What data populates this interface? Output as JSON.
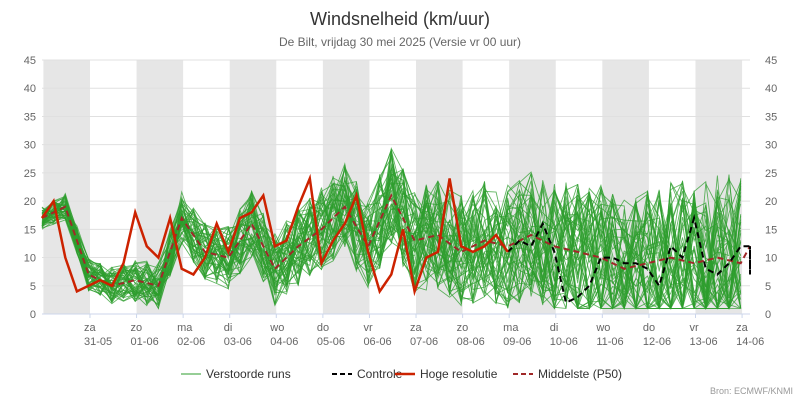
{
  "chart_data": {
    "type": "line",
    "title": "Windsnelheid (km/uur)",
    "subtitle": "De Bilt, vrijdag 30 mei 2025 (Versie vr 00 uur)",
    "source": "Bron: ECMWF/KNMI",
    "ylim": [
      0,
      45
    ],
    "y_ticks": [
      0,
      5,
      10,
      15,
      20,
      25,
      30,
      35,
      40,
      45
    ],
    "x_range_days": [
      0,
      15.2
    ],
    "day_labels": [
      {
        "day": "za",
        "date": "31-05"
      },
      {
        "day": "zo",
        "date": "01-06"
      },
      {
        "day": "ma",
        "date": "02-06"
      },
      {
        "day": "di",
        "date": "03-06"
      },
      {
        "day": "wo",
        "date": "04-06"
      },
      {
        "day": "do",
        "date": "05-06"
      },
      {
        "day": "vr",
        "date": "06-06"
      },
      {
        "day": "za",
        "date": "07-06"
      },
      {
        "day": "zo",
        "date": "08-06"
      },
      {
        "day": "ma",
        "date": "09-06"
      },
      {
        "day": "di",
        "date": "10-06"
      },
      {
        "day": "wo",
        "date": "11-06"
      },
      {
        "day": "do",
        "date": "12-06"
      },
      {
        "day": "vr",
        "date": "13-06"
      },
      {
        "day": "za",
        "date": "14-06"
      }
    ],
    "grid": true,
    "legend_position": "bottom",
    "colors": {
      "ensemble": "#2e9e2e",
      "control": "#000000",
      "hires": "#cc2200",
      "median": "#a02828",
      "shade": "#e6e6e6"
    },
    "series": [
      {
        "name": "Hoge resolutie",
        "x": [
          0,
          0.25,
          0.5,
          0.75,
          1.0,
          1.25,
          1.5,
          1.75,
          2.0,
          2.25,
          2.5,
          2.75,
          3.0,
          3.25,
          3.5,
          3.75,
          4.0,
          4.25,
          4.5,
          4.75,
          5.0,
          5.25,
          5.5,
          5.75,
          6.0,
          6.25,
          6.5,
          6.75,
          7.0,
          7.25,
          7.5,
          7.75,
          8.0,
          8.25,
          8.5,
          8.75,
          9.0,
          9.25,
          9.5,
          9.75,
          10.0
        ],
        "values": [
          17,
          20,
          10,
          4,
          5,
          6,
          5,
          9,
          18,
          12,
          10,
          17,
          8,
          7,
          10,
          16,
          11,
          17,
          18,
          21,
          12,
          13,
          19,
          24,
          9,
          13,
          16,
          21,
          11,
          4,
          7,
          15,
          4,
          10,
          11,
          24,
          12,
          11,
          12,
          14,
          11
        ]
      },
      {
        "name": "Controle",
        "x": [
          10.0,
          10.25,
          10.5,
          10.75,
          11.0,
          11.25,
          11.5,
          11.75,
          12.0,
          12.25,
          12.5,
          12.75,
          13.0,
          13.25,
          13.5,
          13.75,
          14.0,
          14.25,
          14.5,
          14.75,
          15.0,
          15.25,
          15.5,
          15.75,
          16.0
        ],
        "values": [
          11,
          13,
          12,
          16,
          11,
          2,
          3,
          5,
          10,
          10,
          9,
          9,
          8,
          5,
          12,
          10,
          17,
          8,
          7,
          9,
          12,
          12,
          7,
          12,
          7
        ]
      },
      {
        "name": "Middelste (P50)",
        "x": [
          0,
          0.5,
          1.0,
          1.5,
          2.0,
          2.5,
          3.0,
          3.5,
          4.0,
          4.5,
          5.0,
          5.5,
          6.0,
          6.5,
          7.0,
          7.5,
          8.0,
          8.5,
          9.0,
          9.5,
          10.0,
          10.5,
          11.0,
          11.5,
          12.0,
          12.5,
          13.0,
          13.5,
          14.0,
          14.5,
          15.0,
          15.5,
          16.0
        ],
        "values": [
          17,
          19,
          7,
          5,
          6,
          5,
          17,
          11,
          10,
          16,
          8,
          12,
          15,
          19,
          12,
          21,
          13,
          14,
          11,
          13,
          12,
          14,
          12,
          11,
          10,
          8,
          9,
          10,
          9,
          10,
          9,
          12,
          10
        ]
      },
      {
        "name": "Verstoorde runs",
        "members": 50
      }
    ]
  },
  "legend": {
    "ensemble": "Verstoorde runs",
    "control": "Controle",
    "hires": "Hoge resolutie",
    "median": "Middelste (P50)"
  }
}
